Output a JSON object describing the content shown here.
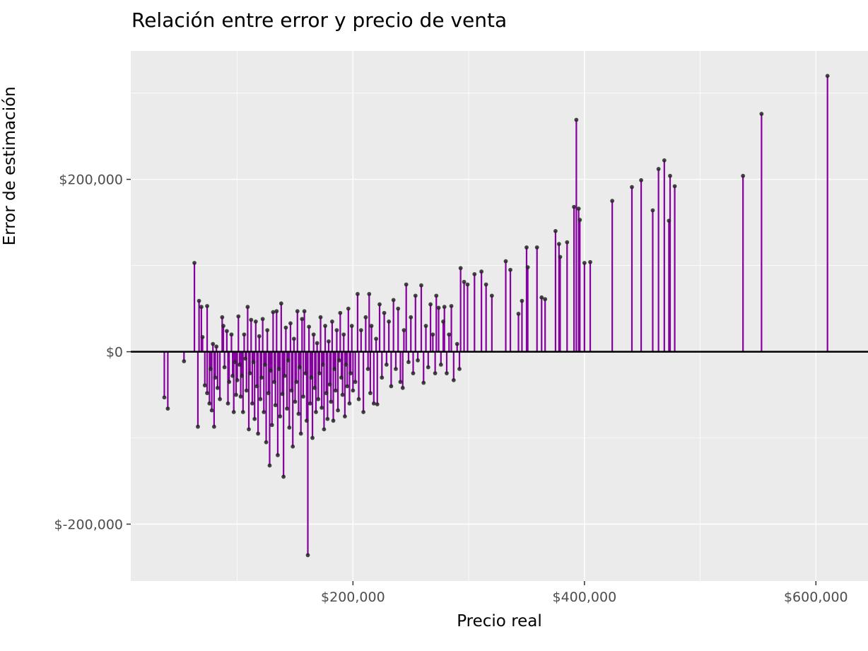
{
  "title": {
    "text": "Relación entre error y precio de venta"
  },
  "chart_data": {
    "type": "scatter",
    "variant": "lollipop-stem-residual-plot",
    "title": "Relación entre error y precio de venta",
    "xlabel": "Precio real",
    "ylabel": "Error de estimación",
    "xlim": [
      8000,
      645000
    ],
    "ylim": [
      -266000,
      349000
    ],
    "baseline": 0,
    "grid": "major-and-minor-white-on-gray",
    "legend": "none",
    "x_ticks": [
      {
        "value": 200000,
        "label": "$200,000"
      },
      {
        "value": 400000,
        "label": "$400,000"
      },
      {
        "value": 600000,
        "label": "$600,000"
      }
    ],
    "y_ticks": [
      {
        "value": 200000,
        "label": "$200,000"
      },
      {
        "value": 0,
        "label": "$0"
      },
      {
        "value": -200000,
        "label": "$-200,000"
      }
    ],
    "x_minor_ticks": [
      100000,
      300000,
      500000
    ],
    "y_minor_ticks": [
      -100000,
      100000,
      300000
    ],
    "colors": {
      "panel_background": "#EBEBEB",
      "grid": "#FFFFFF",
      "stem": "#85009E",
      "point": "#262626",
      "baseline": "#000000",
      "tick_label": "#4D4D4D",
      "tick_mark": "#333333",
      "title": "#000000"
    },
    "columns": [
      "precio_real_usd",
      "error_usd"
    ],
    "points": [
      [
        37000,
        -53000
      ],
      [
        40000,
        -66000
      ],
      [
        54000,
        -11000
      ],
      [
        63000,
        103000
      ],
      [
        66000,
        -87000
      ],
      [
        67000,
        59000
      ],
      [
        69000,
        52000
      ],
      [
        70000,
        17000
      ],
      [
        72000,
        -39000
      ],
      [
        74000,
        53000
      ],
      [
        74000,
        -48000
      ],
      [
        76000,
        -60000
      ],
      [
        77000,
        -20000
      ],
      [
        78000,
        -68000
      ],
      [
        79000,
        9000
      ],
      [
        80000,
        -87000
      ],
      [
        81000,
        -30000
      ],
      [
        82000,
        6000
      ],
      [
        83000,
        -42000
      ],
      [
        85000,
        -55000
      ],
      [
        87000,
        40000
      ],
      [
        88000,
        30000
      ],
      [
        89000,
        -18000
      ],
      [
        91000,
        24000
      ],
      [
        92000,
        -60000
      ],
      [
        93000,
        -35000
      ],
      [
        95000,
        20000
      ],
      [
        96000,
        -28000
      ],
      [
        97000,
        -70000
      ],
      [
        98000,
        -12000
      ],
      [
        99000,
        -50000
      ],
      [
        100000,
        -33000
      ],
      [
        101000,
        41000
      ],
      [
        102000,
        -15000
      ],
      [
        103000,
        -52000
      ],
      [
        104000,
        -28000
      ],
      [
        105000,
        -70000
      ],
      [
        106000,
        20000
      ],
      [
        107000,
        -8000
      ],
      [
        108000,
        -45000
      ],
      [
        109000,
        52000
      ],
      [
        110000,
        -90000
      ],
      [
        111000,
        -25000
      ],
      [
        112000,
        37000
      ],
      [
        113000,
        -60000
      ],
      [
        114000,
        -12000
      ],
      [
        115000,
        -78000
      ],
      [
        116000,
        35000
      ],
      [
        117000,
        -40000
      ],
      [
        118000,
        -95000
      ],
      [
        119000,
        18000
      ],
      [
        120000,
        -55000
      ],
      [
        121000,
        -30000
      ],
      [
        122000,
        38000
      ],
      [
        123000,
        -70000
      ],
      [
        124000,
        -15000
      ],
      [
        125000,
        -105000
      ],
      [
        126000,
        25000
      ],
      [
        127000,
        -48000
      ],
      [
        128000,
        -132000
      ],
      [
        129000,
        -22000
      ],
      [
        130000,
        -85000
      ],
      [
        131000,
        46000
      ],
      [
        132000,
        -35000
      ],
      [
        133000,
        -62000
      ],
      [
        134000,
        47000
      ],
      [
        135000,
        -120000
      ],
      [
        136000,
        -20000
      ],
      [
        137000,
        -75000
      ],
      [
        138000,
        56000
      ],
      [
        139000,
        -49000
      ],
      [
        140000,
        -145000
      ],
      [
        141000,
        -28000
      ],
      [
        142000,
        28000
      ],
      [
        143000,
        -66000
      ],
      [
        144000,
        -10000
      ],
      [
        145000,
        -88000
      ],
      [
        146000,
        33000
      ],
      [
        147000,
        -45000
      ],
      [
        148000,
        -110000
      ],
      [
        149000,
        15000
      ],
      [
        150000,
        -58000
      ],
      [
        151000,
        -35000
      ],
      [
        152000,
        47000
      ],
      [
        153000,
        -72000
      ],
      [
        154000,
        -18000
      ],
      [
        155000,
        -95000
      ],
      [
        156000,
        38000
      ],
      [
        157000,
        -52000
      ],
      [
        158000,
        47000
      ],
      [
        159000,
        -25000
      ],
      [
        160000,
        -80000
      ],
      [
        161000,
        -236000
      ],
      [
        162000,
        29000
      ],
      [
        163000,
        -60000
      ],
      [
        164000,
        -30000
      ],
      [
        165000,
        -100000
      ],
      [
        166000,
        20000
      ],
      [
        167000,
        -42000
      ],
      [
        168000,
        -70000
      ],
      [
        169000,
        10000
      ],
      [
        170000,
        -55000
      ],
      [
        171000,
        -25000
      ],
      [
        172000,
        40000
      ],
      [
        173000,
        -65000
      ],
      [
        174000,
        -15000
      ],
      [
        175000,
        -90000
      ],
      [
        176000,
        30000
      ],
      [
        177000,
        -48000
      ],
      [
        178000,
        -78000
      ],
      [
        179000,
        12000
      ],
      [
        180000,
        -38000
      ],
      [
        181000,
        -58000
      ],
      [
        182000,
        35000
      ],
      [
        183000,
        -80000
      ],
      [
        184000,
        -20000
      ],
      [
        185000,
        -45000
      ],
      [
        186000,
        25000
      ],
      [
        187000,
        -68000
      ],
      [
        188000,
        -10000
      ],
      [
        189000,
        45000
      ],
      [
        190000,
        -30000
      ],
      [
        191000,
        -50000
      ],
      [
        192000,
        20000
      ],
      [
        193000,
        -75000
      ],
      [
        194000,
        -15000
      ],
      [
        195000,
        -40000
      ],
      [
        196000,
        50000
      ],
      [
        197000,
        -60000
      ],
      [
        198000,
        -25000
      ],
      [
        199000,
        30000
      ],
      [
        200000,
        -45000
      ],
      [
        202000,
        -35000
      ],
      [
        204000,
        67000
      ],
      [
        205000,
        -55000
      ],
      [
        207000,
        25000
      ],
      [
        209000,
        -70000
      ],
      [
        211000,
        40000
      ],
      [
        213000,
        -20000
      ],
      [
        214000,
        67000
      ],
      [
        215000,
        -48000
      ],
      [
        216000,
        30000
      ],
      [
        218000,
        -60000
      ],
      [
        220000,
        15000
      ],
      [
        221000,
        -61000
      ],
      [
        223000,
        55000
      ],
      [
        225000,
        -30000
      ],
      [
        227000,
        45000
      ],
      [
        229000,
        -15000
      ],
      [
        231000,
        35000
      ],
      [
        233000,
        -40000
      ],
      [
        235000,
        60000
      ],
      [
        237000,
        -20000
      ],
      [
        239000,
        50000
      ],
      [
        241000,
        -35000
      ],
      [
        243000,
        -42000
      ],
      [
        244000,
        25000
      ],
      [
        246000,
        78000
      ],
      [
        248000,
        -12000
      ],
      [
        250000,
        40000
      ],
      [
        252000,
        -25000
      ],
      [
        254000,
        65000
      ],
      [
        256000,
        -10000
      ],
      [
        259000,
        77000
      ],
      [
        261000,
        -36000
      ],
      [
        263000,
        30000
      ],
      [
        265000,
        -18000
      ],
      [
        267000,
        55000
      ],
      [
        269000,
        20000
      ],
      [
        271000,
        -25000
      ],
      [
        272000,
        65000
      ],
      [
        274000,
        51000
      ],
      [
        276000,
        -15000
      ],
      [
        278000,
        35000
      ],
      [
        279000,
        52000
      ],
      [
        281000,
        -25000
      ],
      [
        283000,
        20000
      ],
      [
        285000,
        53000
      ],
      [
        287000,
        -33000
      ],
      [
        290000,
        9000
      ],
      [
        292000,
        -20000
      ],
      [
        293000,
        97000
      ],
      [
        296000,
        81000
      ],
      [
        299000,
        78000
      ],
      [
        305000,
        90000
      ],
      [
        311000,
        93000
      ],
      [
        315000,
        78000
      ],
      [
        320000,
        65000
      ],
      [
        332000,
        105000
      ],
      [
        336000,
        95000
      ],
      [
        343000,
        44000
      ],
      [
        346000,
        59000
      ],
      [
        350000,
        121000
      ],
      [
        351000,
        98000
      ],
      [
        359000,
        121000
      ],
      [
        363000,
        63000
      ],
      [
        366000,
        61000
      ],
      [
        375000,
        140000
      ],
      [
        378000,
        125000
      ],
      [
        379000,
        110000
      ],
      [
        385000,
        127000
      ],
      [
        391000,
        168000
      ],
      [
        393000,
        269000
      ],
      [
        395000,
        166000
      ],
      [
        396000,
        153000
      ],
      [
        400000,
        103000
      ],
      [
        405000,
        104000
      ],
      [
        424000,
        175000
      ],
      [
        441000,
        191000
      ],
      [
        449000,
        199000
      ],
      [
        459000,
        164000
      ],
      [
        464000,
        212000
      ],
      [
        469000,
        222000
      ],
      [
        473000,
        152000
      ],
      [
        474000,
        204000
      ],
      [
        478000,
        192000
      ],
      [
        537000,
        204000
      ],
      [
        553000,
        276000
      ],
      [
        610000,
        320000
      ]
    ]
  }
}
